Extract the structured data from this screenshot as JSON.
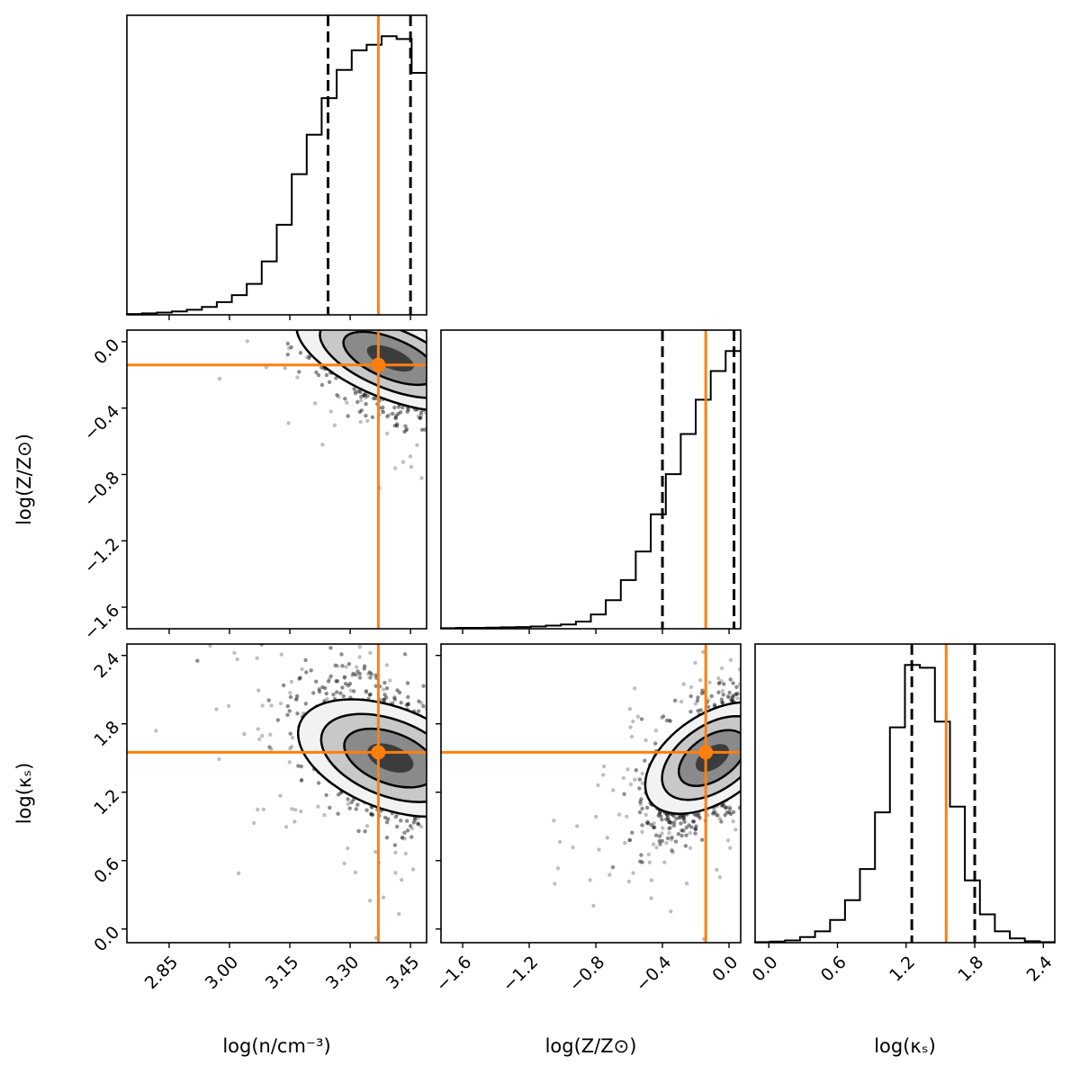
{
  "chart_data": {
    "type": "corner",
    "parameters": [
      {
        "key": "logn",
        "label": "log(n/cm⁻³)",
        "range": [
          2.745,
          3.49
        ],
        "ticks": [
          "2.85",
          "3.00",
          "3.15",
          "3.30",
          "3.45"
        ],
        "tick_values": [
          2.85,
          3.0,
          3.15,
          3.3,
          3.45
        ],
        "best_fit": 3.37,
        "quantiles": [
          3.245,
          3.45
        ]
      },
      {
        "key": "logZ",
        "label": "log(Z/Z⊙)",
        "range": [
          -1.73,
          0.07
        ],
        "ticks": [
          "−1.6",
          "−1.2",
          "−0.8",
          "−0.4",
          "0.0"
        ],
        "tick_values": [
          -1.6,
          -1.2,
          -0.8,
          -0.4,
          0.0
        ],
        "best_fit": -0.14,
        "quantiles": [
          -0.4,
          0.03
        ]
      },
      {
        "key": "logk",
        "label": "log(κₛ)",
        "range": [
          -0.12,
          2.5
        ],
        "ticks": [
          "0.0",
          "0.6",
          "1.2",
          "1.8",
          "2.4"
        ],
        "tick_values": [
          0.0,
          0.6,
          1.2,
          1.8,
          2.4
        ],
        "best_fit": 1.55,
        "quantiles": [
          1.25,
          1.8
        ]
      }
    ],
    "marginals": {
      "logn": {
        "bin_edges": [
          2.745,
          2.7823,
          2.8195,
          2.8567,
          2.894,
          2.9313,
          2.9685,
          3.0058,
          3.043,
          3.0802,
          3.1175,
          3.1548,
          3.192,
          3.2292,
          3.2665,
          3.3038,
          3.341,
          3.3782,
          3.4155,
          3.4528,
          3.49
        ],
        "counts": [
          0.003,
          0.005,
          0.008,
          0.012,
          0.018,
          0.028,
          0.045,
          0.07,
          0.11,
          0.19,
          0.32,
          0.5,
          0.64,
          0.77,
          0.87,
          0.94,
          0.96,
          0.99,
          0.98,
          0.86
        ]
      },
      "logZ": {
        "bin_edges": [
          -1.73,
          -1.64,
          -1.55,
          -1.46,
          -1.37,
          -1.28,
          -1.19,
          -1.1,
          -1.01,
          -0.92,
          -0.83,
          -0.74,
          -0.65,
          -0.56,
          -0.47,
          -0.38,
          -0.29,
          -0.2,
          -0.11,
          -0.02,
          0.07
        ],
        "counts": [
          0.002,
          0.003,
          0.003,
          0.004,
          0.005,
          0.006,
          0.008,
          0.011,
          0.015,
          0.025,
          0.05,
          0.1,
          0.17,
          0.27,
          0.4,
          0.54,
          0.68,
          0.8,
          0.9,
          0.97
        ]
      },
      "logk": {
        "bin_edges": [
          -0.12,
          0.011,
          0.142,
          0.273,
          0.404,
          0.535,
          0.666,
          0.797,
          0.928,
          1.059,
          1.19,
          1.321,
          1.452,
          1.583,
          1.714,
          1.845,
          1.976,
          2.107,
          2.238,
          2.369,
          2.5
        ],
        "counts": [
          0.002,
          0.004,
          0.008,
          0.02,
          0.04,
          0.08,
          0.15,
          0.26,
          0.46,
          0.76,
          0.98,
          0.97,
          0.78,
          0.48,
          0.22,
          0.1,
          0.04,
          0.015,
          0.005,
          0.002
        ]
      }
    },
    "correlations": {
      "logZ|logn": -0.55,
      "logk|logn": -0.45,
      "logk|logZ": 0.6
    },
    "sample_means": {
      "logn": 3.4,
      "logZ": -0.1,
      "logk": 1.5
    },
    "sample_sds": {
      "logn": 0.1,
      "logZ": 0.18,
      "logk": 0.3
    },
    "legend": "none",
    "grid": false,
    "colors": {
      "best_fit": "#ff7f0e",
      "histogram": "#000000",
      "quantile": "#000000",
      "points": "#000000"
    }
  }
}
